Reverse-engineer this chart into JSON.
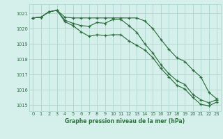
{
  "background_color": "#d5f0eb",
  "grid_color": "#aad4cc",
  "line_color": "#2d6e3e",
  "title": "Graphe pression niveau de la mer (hPa)",
  "xlim": [
    -0.5,
    23.5
  ],
  "ylim": [
    1014.6,
    1021.6
  ],
  "yticks": [
    1015,
    1016,
    1017,
    1018,
    1019,
    1020,
    1021
  ],
  "xticks": [
    0,
    1,
    2,
    3,
    4,
    5,
    6,
    7,
    8,
    9,
    10,
    11,
    12,
    13,
    14,
    15,
    16,
    17,
    18,
    19,
    20,
    21,
    22,
    23
  ],
  "series1": [
    1020.7,
    1020.75,
    1021.1,
    1021.2,
    1020.75,
    1020.7,
    1020.7,
    1020.7,
    1020.7,
    1020.7,
    1020.7,
    1020.7,
    1020.7,
    1020.7,
    1020.5,
    1020.0,
    1019.3,
    1018.65,
    1018.1,
    1017.85,
    1017.3,
    1016.85,
    1015.85,
    1015.4
  ],
  "series2": [
    1020.7,
    1020.75,
    1021.1,
    1021.2,
    1020.55,
    1020.35,
    1020.2,
    1020.15,
    1020.4,
    1020.35,
    1020.6,
    1020.6,
    1020.2,
    1019.75,
    1019.0,
    1018.4,
    1017.65,
    1017.05,
    1016.6,
    1016.35,
    1015.7,
    1015.35,
    1015.15,
    1015.35
  ],
  "series3": [
    1020.7,
    1020.75,
    1021.1,
    1021.2,
    1020.45,
    1020.2,
    1019.8,
    1019.5,
    1019.6,
    1019.55,
    1019.6,
    1019.6,
    1019.2,
    1018.9,
    1018.6,
    1018.1,
    1017.4,
    1016.85,
    1016.3,
    1016.05,
    1015.5,
    1015.05,
    1014.95,
    1015.2
  ]
}
